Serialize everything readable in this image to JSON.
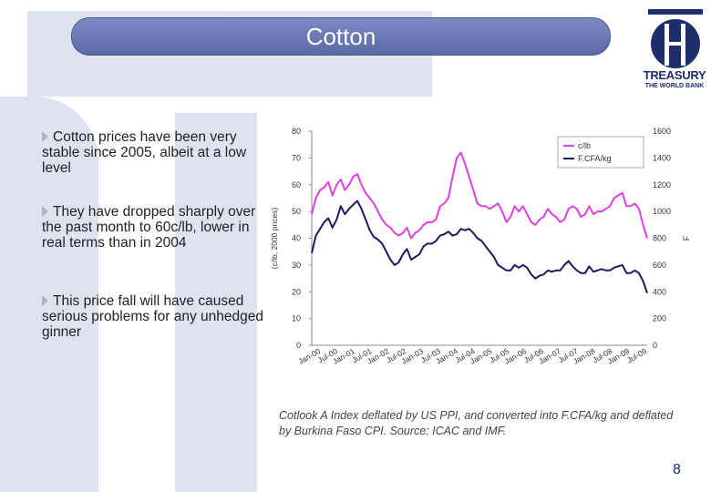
{
  "slide": {
    "title": "Cotton",
    "page_number": "8"
  },
  "logo": {
    "name": "TREASURY",
    "sub": "THE WORLD BANK"
  },
  "bullets": [
    "Cotton prices have been very stable since 2005, albeit at a low level",
    "They have dropped sharply over the past month to 60c/lb, lower in real terms than in 2004",
    "This price fall will have caused serious problems for any unhedged ginner"
  ],
  "source_note": "Cotlook A Index deflated by US PPI, and converted into F.CFA/kg and deflated by Burkina Faso CPI. Source: ICAC and IMF.",
  "chart_data": {
    "type": "line",
    "ylabel": "(c/lb, 2000 prices)",
    "y2label": "F",
    "ylim": [
      0,
      80
    ],
    "y2lim": [
      0,
      1600
    ],
    "yticks": [
      0,
      10,
      20,
      30,
      40,
      50,
      60,
      70,
      80
    ],
    "y2ticks": [
      0,
      200,
      400,
      600,
      800,
      1000,
      1200,
      1400,
      1600
    ],
    "xticks": [
      "Jan-00",
      "Jul-00",
      "Jan-01",
      "Jul-01",
      "Jan-02",
      "Jul-02",
      "Jan-03",
      "Jul-03",
      "Jan-04",
      "Jul-04",
      "Jan-05",
      "Jul-05",
      "Jan-06",
      "Jul-06",
      "Jan-07",
      "Jul-07",
      "Jan-08",
      "Jul-08",
      "Jan-09",
      "Jul-09"
    ],
    "legend_position": "top-right",
    "series": [
      {
        "name": "c/lb",
        "axis": "left",
        "color": "#e040e0",
        "values": [
          49,
          55,
          58,
          59,
          61,
          56,
          60,
          62,
          58,
          60,
          63,
          64,
          60,
          57,
          55,
          53,
          50,
          47,
          45,
          44,
          42,
          41,
          42,
          44,
          40,
          42,
          43,
          45,
          46,
          46,
          47,
          52,
          53,
          55,
          63,
          70,
          72,
          68,
          63,
          58,
          53,
          52,
          52,
          51,
          52,
          53,
          50,
          46,
          48,
          52,
          50,
          52,
          49,
          46,
          45,
          47,
          48,
          51,
          49,
          48,
          46,
          47,
          51,
          52,
          51,
          48,
          49,
          52,
          49,
          50,
          50,
          51,
          52,
          55,
          56,
          57,
          52,
          52,
          53,
          51,
          45,
          40
        ]
      },
      {
        "name": "F.CFA/kg",
        "axis": "right",
        "color": "#1a1a5e",
        "values": [
          690,
          820,
          870,
          920,
          950,
          880,
          940,
          1040,
          980,
          1020,
          1050,
          1080,
          1020,
          940,
          860,
          810,
          790,
          760,
          700,
          640,
          600,
          620,
          680,
          720,
          640,
          660,
          680,
          740,
          760,
          760,
          780,
          820,
          830,
          850,
          820,
          830,
          870,
          860,
          870,
          840,
          800,
          780,
          740,
          700,
          660,
          600,
          580,
          560,
          560,
          600,
          580,
          600,
          580,
          530,
          500,
          520,
          530,
          560,
          550,
          560,
          560,
          600,
          630,
          590,
          560,
          540,
          540,
          590,
          550,
          560,
          570,
          560,
          560,
          580,
          590,
          600,
          540,
          540,
          560,
          540,
          480,
          390
        ]
      }
    ]
  }
}
